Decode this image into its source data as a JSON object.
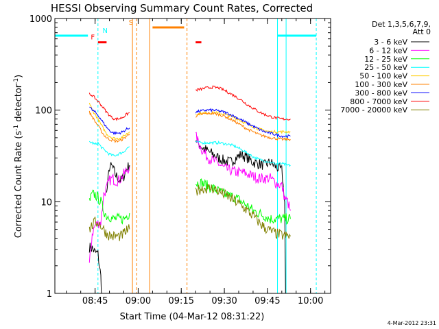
{
  "chart_data": {
    "type": "line",
    "title": "HESSI Observing Summary Count Rates, Corrected",
    "xlabel": "Start Time (04-Mar-12 08:31:22)",
    "ylabel": "Corrected Count Rate (s-1 detector-1)",
    "ylabel_parts": {
      "a": "Corrected Count Rate (s",
      "sup1": "-1",
      "b": " detector",
      "sup2": "-1",
      "c": ")"
    },
    "y_scale": "log",
    "ylim": [
      1,
      1000
    ],
    "xlim_minutes_after_0831": [
      0,
      96
    ],
    "x_ticks": [
      "08:45",
      "09:00",
      "09:15",
      "09:30",
      "09:45",
      "10:00"
    ],
    "y_ticks": [
      "1",
      "10",
      "100",
      "1000"
    ],
    "legend_title": [
      "Det 1,3,5,6,7,9,",
      "Att 0"
    ],
    "legend_placement": "right",
    "footer_date": "4-Mar-2012 23:31",
    "flag_labels": {
      "F": "F",
      "N": "N",
      "S": "S"
    },
    "series": [
      {
        "name": "3 - 6 keV",
        "color": "#000000",
        "seg1": [
          [
            12,
            3.2
          ],
          [
            13,
            3.1
          ],
          [
            14,
            2.8
          ],
          [
            15,
            2.7
          ],
          [
            16,
            1.5
          ],
          [
            16.3,
            1.0
          ]
        ],
        "seg1b": [
          [
            18,
            12
          ],
          [
            19,
            24
          ],
          [
            20,
            24
          ],
          [
            21,
            20
          ],
          [
            22,
            18
          ],
          [
            23,
            17
          ],
          [
            24,
            19
          ],
          [
            25,
            23
          ],
          [
            26,
            25
          ]
        ],
        "seg2": [
          [
            49,
            48
          ],
          [
            51,
            40
          ],
          [
            53,
            36
          ],
          [
            55,
            33
          ],
          [
            57,
            30
          ],
          [
            59,
            28
          ],
          [
            61,
            27
          ],
          [
            63,
            30
          ],
          [
            65,
            33
          ],
          [
            67,
            30
          ],
          [
            69,
            27
          ],
          [
            71,
            26
          ],
          [
            73,
            25
          ],
          [
            75,
            27
          ],
          [
            77,
            24
          ],
          [
            79,
            22
          ],
          [
            80,
            10
          ],
          [
            80.3,
            1.0
          ]
        ]
      },
      {
        "name": "6 - 12 keV",
        "color": "#ff00ff",
        "seg1": [
          [
            12,
            2.0
          ],
          [
            13,
            4.5
          ],
          [
            14,
            5.5
          ],
          [
            15,
            5.8
          ],
          [
            16,
            6.0
          ],
          [
            17,
            12
          ],
          [
            18,
            14
          ],
          [
            19,
            17
          ],
          [
            20,
            18
          ],
          [
            21,
            17
          ],
          [
            22,
            17
          ],
          [
            23,
            18
          ],
          [
            24,
            20
          ],
          [
            25,
            22
          ],
          [
            26,
            24
          ]
        ],
        "seg2": [
          [
            49,
            52
          ],
          [
            51,
            38
          ],
          [
            53,
            31
          ],
          [
            55,
            28
          ],
          [
            57,
            26
          ],
          [
            59,
            23
          ],
          [
            61,
            22
          ],
          [
            63,
            21
          ],
          [
            65,
            21
          ],
          [
            67,
            20
          ],
          [
            69,
            19
          ],
          [
            71,
            18
          ],
          [
            73,
            18
          ],
          [
            75,
            18
          ],
          [
            77,
            16
          ],
          [
            79,
            15
          ],
          [
            80,
            11
          ],
          [
            81,
            10
          ],
          [
            82,
            8
          ]
        ]
      },
      {
        "name": "12 - 25 keV",
        "color": "#00ff00",
        "seg1": [
          [
            12,
            10
          ],
          [
            13,
            12
          ],
          [
            14,
            12
          ],
          [
            15,
            11
          ],
          [
            16,
            10
          ],
          [
            17,
            8
          ],
          [
            18,
            7
          ],
          [
            19,
            7
          ],
          [
            20,
            6.5
          ],
          [
            21,
            6.5
          ],
          [
            22,
            6.5
          ],
          [
            23,
            6.5
          ],
          [
            24,
            6.5
          ],
          [
            25,
            7
          ],
          [
            26,
            7.5
          ]
        ],
        "seg2": [
          [
            49,
            16
          ],
          [
            51,
            16
          ],
          [
            53,
            15
          ],
          [
            55,
            14
          ],
          [
            57,
            13
          ],
          [
            59,
            12
          ],
          [
            61,
            11.5
          ],
          [
            63,
            11
          ],
          [
            65,
            10
          ],
          [
            67,
            9
          ],
          [
            69,
            8
          ],
          [
            71,
            7.5
          ],
          [
            73,
            7
          ],
          [
            75,
            6.5
          ],
          [
            77,
            6.5
          ],
          [
            79,
            6.5
          ],
          [
            81,
            6.5
          ],
          [
            82,
            6.5
          ]
        ]
      },
      {
        "name": "25 - 50 keV",
        "color": "#00ffff",
        "seg1": [
          [
            12,
            45
          ],
          [
            13,
            44
          ],
          [
            14,
            42
          ],
          [
            15,
            44
          ],
          [
            16,
            40
          ],
          [
            17,
            37
          ],
          [
            18,
            35
          ],
          [
            19,
            33
          ],
          [
            20,
            32
          ],
          [
            21,
            32
          ],
          [
            22,
            33
          ],
          [
            23,
            34
          ],
          [
            24,
            35
          ],
          [
            25,
            38
          ],
          [
            26,
            40
          ]
        ],
        "seg2": [
          [
            49,
            45
          ],
          [
            51,
            44
          ],
          [
            53,
            44
          ],
          [
            55,
            44
          ],
          [
            57,
            44
          ],
          [
            59,
            43
          ],
          [
            61,
            42
          ],
          [
            63,
            40
          ],
          [
            65,
            37
          ],
          [
            67,
            34
          ],
          [
            69,
            31
          ],
          [
            71,
            29
          ],
          [
            73,
            28
          ],
          [
            75,
            27
          ],
          [
            77,
            26
          ],
          [
            79,
            26
          ],
          [
            81,
            25
          ],
          [
            82,
            25
          ]
        ]
      },
      {
        "name": "50 - 100 keV",
        "color": "#ffcc00",
        "seg1": [
          [
            12,
            120
          ],
          [
            13,
            100
          ],
          [
            14,
            90
          ],
          [
            15,
            80
          ],
          [
            16,
            70
          ],
          [
            17,
            62
          ],
          [
            18,
            55
          ],
          [
            19,
            52
          ],
          [
            20,
            50
          ],
          [
            21,
            49
          ],
          [
            22,
            49
          ],
          [
            23,
            50
          ],
          [
            24,
            52
          ],
          [
            25,
            55
          ],
          [
            26,
            58
          ]
        ],
        "seg2": [
          [
            49,
            90
          ],
          [
            51,
            92
          ],
          [
            53,
            93
          ],
          [
            55,
            94
          ],
          [
            57,
            93
          ],
          [
            59,
            90
          ],
          [
            61,
            86
          ],
          [
            63,
            82
          ],
          [
            65,
            76
          ],
          [
            67,
            70
          ],
          [
            69,
            66
          ],
          [
            71,
            62
          ],
          [
            73,
            60
          ],
          [
            75,
            58
          ],
          [
            77,
            58
          ],
          [
            79,
            58
          ],
          [
            81,
            58
          ],
          [
            82,
            58
          ]
        ]
      },
      {
        "name": "100 - 300 keV",
        "color": "#ff8000",
        "seg1": [
          [
            12,
            95
          ],
          [
            13,
            85
          ],
          [
            14,
            75
          ],
          [
            15,
            68
          ],
          [
            16,
            60
          ],
          [
            17,
            54
          ],
          [
            18,
            50
          ],
          [
            19,
            48
          ],
          [
            20,
            47
          ],
          [
            21,
            46
          ],
          [
            22,
            46
          ],
          [
            23,
            47
          ],
          [
            24,
            49
          ],
          [
            25,
            52
          ],
          [
            26,
            55
          ]
        ],
        "seg2": [
          [
            49,
            86
          ],
          [
            51,
            90
          ],
          [
            53,
            92
          ],
          [
            55,
            92
          ],
          [
            57,
            90
          ],
          [
            59,
            86
          ],
          [
            61,
            80
          ],
          [
            63,
            74
          ],
          [
            65,
            68
          ],
          [
            67,
            62
          ],
          [
            69,
            58
          ],
          [
            71,
            54
          ],
          [
            73,
            52
          ],
          [
            75,
            50
          ],
          [
            77,
            49
          ],
          [
            79,
            48
          ],
          [
            81,
            48
          ],
          [
            82,
            48
          ]
        ]
      },
      {
        "name": "300 - 800 keV",
        "color": "#0000ff",
        "seg1": [
          [
            12,
            110
          ],
          [
            13,
            100
          ],
          [
            14,
            95
          ],
          [
            15,
            88
          ],
          [
            16,
            80
          ],
          [
            17,
            72
          ],
          [
            18,
            65
          ],
          [
            19,
            60
          ],
          [
            20,
            57
          ],
          [
            21,
            56
          ],
          [
            22,
            56
          ],
          [
            23,
            57
          ],
          [
            24,
            59
          ],
          [
            25,
            62
          ],
          [
            26,
            64
          ]
        ],
        "seg2": [
          [
            49,
            95
          ],
          [
            51,
            98
          ],
          [
            53,
            100
          ],
          [
            55,
            100
          ],
          [
            57,
            98
          ],
          [
            59,
            95
          ],
          [
            61,
            90
          ],
          [
            63,
            84
          ],
          [
            65,
            78
          ],
          [
            67,
            72
          ],
          [
            69,
            67
          ],
          [
            71,
            62
          ],
          [
            73,
            58
          ],
          [
            75,
            56
          ],
          [
            77,
            54
          ],
          [
            79,
            52
          ],
          [
            81,
            52
          ],
          [
            82,
            52
          ]
        ]
      },
      {
        "name": "800 - 7000 keV",
        "color": "#ff0000",
        "seg1": [
          [
            12,
            150
          ],
          [
            13,
            145
          ],
          [
            14,
            135
          ],
          [
            15,
            125
          ],
          [
            16,
            115
          ],
          [
            17,
            105
          ],
          [
            18,
            95
          ],
          [
            19,
            88
          ],
          [
            20,
            82
          ],
          [
            21,
            80
          ],
          [
            22,
            80
          ],
          [
            23,
            82
          ],
          [
            24,
            85
          ],
          [
            25,
            90
          ],
          [
            26,
            94
          ]
        ],
        "seg2": [
          [
            49,
            165
          ],
          [
            51,
            170
          ],
          [
            53,
            175
          ],
          [
            55,
            178
          ],
          [
            57,
            175
          ],
          [
            59,
            165
          ],
          [
            61,
            152
          ],
          [
            63,
            140
          ],
          [
            65,
            128
          ],
          [
            67,
            115
          ],
          [
            69,
            105
          ],
          [
            71,
            96
          ],
          [
            73,
            90
          ],
          [
            75,
            85
          ],
          [
            77,
            82
          ],
          [
            79,
            80
          ],
          [
            81,
            80
          ],
          [
            82,
            80
          ]
        ]
      },
      {
        "name": "7000 - 20000 keV",
        "color": "#808000",
        "seg1": [
          [
            12,
            5
          ],
          [
            13,
            5.5
          ],
          [
            14,
            6
          ],
          [
            15,
            6
          ],
          [
            16,
            5.5
          ],
          [
            17,
            5
          ],
          [
            18,
            4.5
          ],
          [
            19,
            4.3
          ],
          [
            20,
            4.2
          ],
          [
            21,
            4.2
          ],
          [
            22,
            4.2
          ],
          [
            23,
            4.2
          ],
          [
            24,
            4.5
          ],
          [
            25,
            4.8
          ],
          [
            26,
            5
          ]
        ],
        "seg2": [
          [
            49,
            13
          ],
          [
            51,
            14
          ],
          [
            53,
            14
          ],
          [
            55,
            14
          ],
          [
            57,
            13
          ],
          [
            59,
            12
          ],
          [
            61,
            11
          ],
          [
            63,
            10
          ],
          [
            65,
            9
          ],
          [
            67,
            8
          ],
          [
            69,
            7
          ],
          [
            71,
            6
          ],
          [
            73,
            5.2
          ],
          [
            75,
            4.8
          ],
          [
            77,
            4.5
          ],
          [
            79,
            4.3
          ],
          [
            81,
            4.2
          ],
          [
            82,
            4.2
          ]
        ]
      }
    ],
    "cyan_bars": [
      [
        0,
        11.5,
        650
      ],
      [
        77.5,
        91,
        650
      ]
    ],
    "orange_bar": [
      34,
      45,
      800
    ],
    "red_bars": [
      [
        15,
        18,
        550
      ],
      [
        49,
        51,
        550
      ]
    ],
    "cyan_dashed": [
      15,
      91
    ],
    "orange_dashed": [
      28.5,
      46
    ],
    "cyan_solid": [
      0,
      77.5,
      80.5
    ],
    "orange_solid": [
      27,
      33
    ]
  }
}
